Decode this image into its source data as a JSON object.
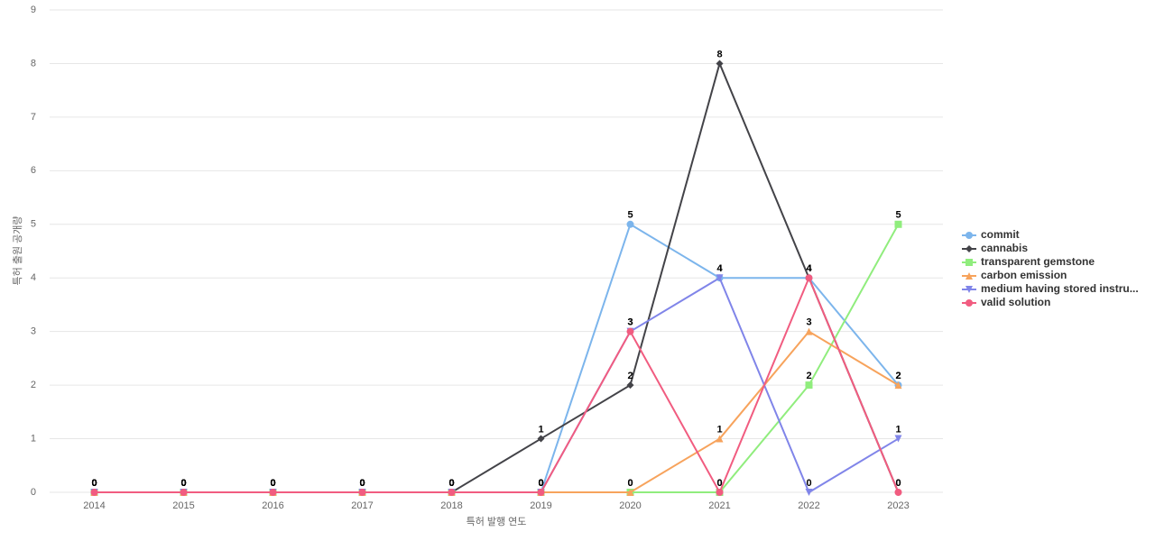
{
  "chart_data": {
    "type": "line",
    "x_label": "특허 발행 연도",
    "y_label": "특허 출원 공개량",
    "categories": [
      "2014",
      "2015",
      "2016",
      "2017",
      "2018",
      "2019",
      "2020",
      "2021",
      "2022",
      "2023"
    ],
    "ylim": [
      0,
      9
    ],
    "yticks": [
      0,
      1,
      2,
      3,
      4,
      5,
      6,
      7,
      8,
      9
    ],
    "grid": true,
    "legend": "right",
    "series": [
      {
        "name": "commit",
        "color": "#7cb5ec",
        "values": [
          0,
          0,
          0,
          0,
          0,
          0,
          5,
          4,
          4,
          2
        ]
      },
      {
        "name": "cannabis",
        "color": "#434348",
        "values": [
          0,
          0,
          0,
          0,
          0,
          1,
          2,
          8,
          4,
          0
        ]
      },
      {
        "name": "transparent gemstone",
        "color": "#90ed7d",
        "values": [
          0,
          0,
          0,
          0,
          0,
          0,
          0,
          0,
          2,
          5
        ]
      },
      {
        "name": "carbon emission",
        "color": "#f7a35c",
        "values": [
          0,
          0,
          0,
          0,
          0,
          0,
          0,
          1,
          3,
          2
        ]
      },
      {
        "name": "medium having stored instru...",
        "color": "#8085e9",
        "values": [
          0,
          0,
          0,
          0,
          0,
          0,
          3,
          4,
          0,
          1
        ]
      },
      {
        "name": "valid solution",
        "color": "#f15c80",
        "values": [
          0,
          0,
          0,
          0,
          0,
          0,
          3,
          0,
          4,
          0
        ]
      }
    ]
  }
}
